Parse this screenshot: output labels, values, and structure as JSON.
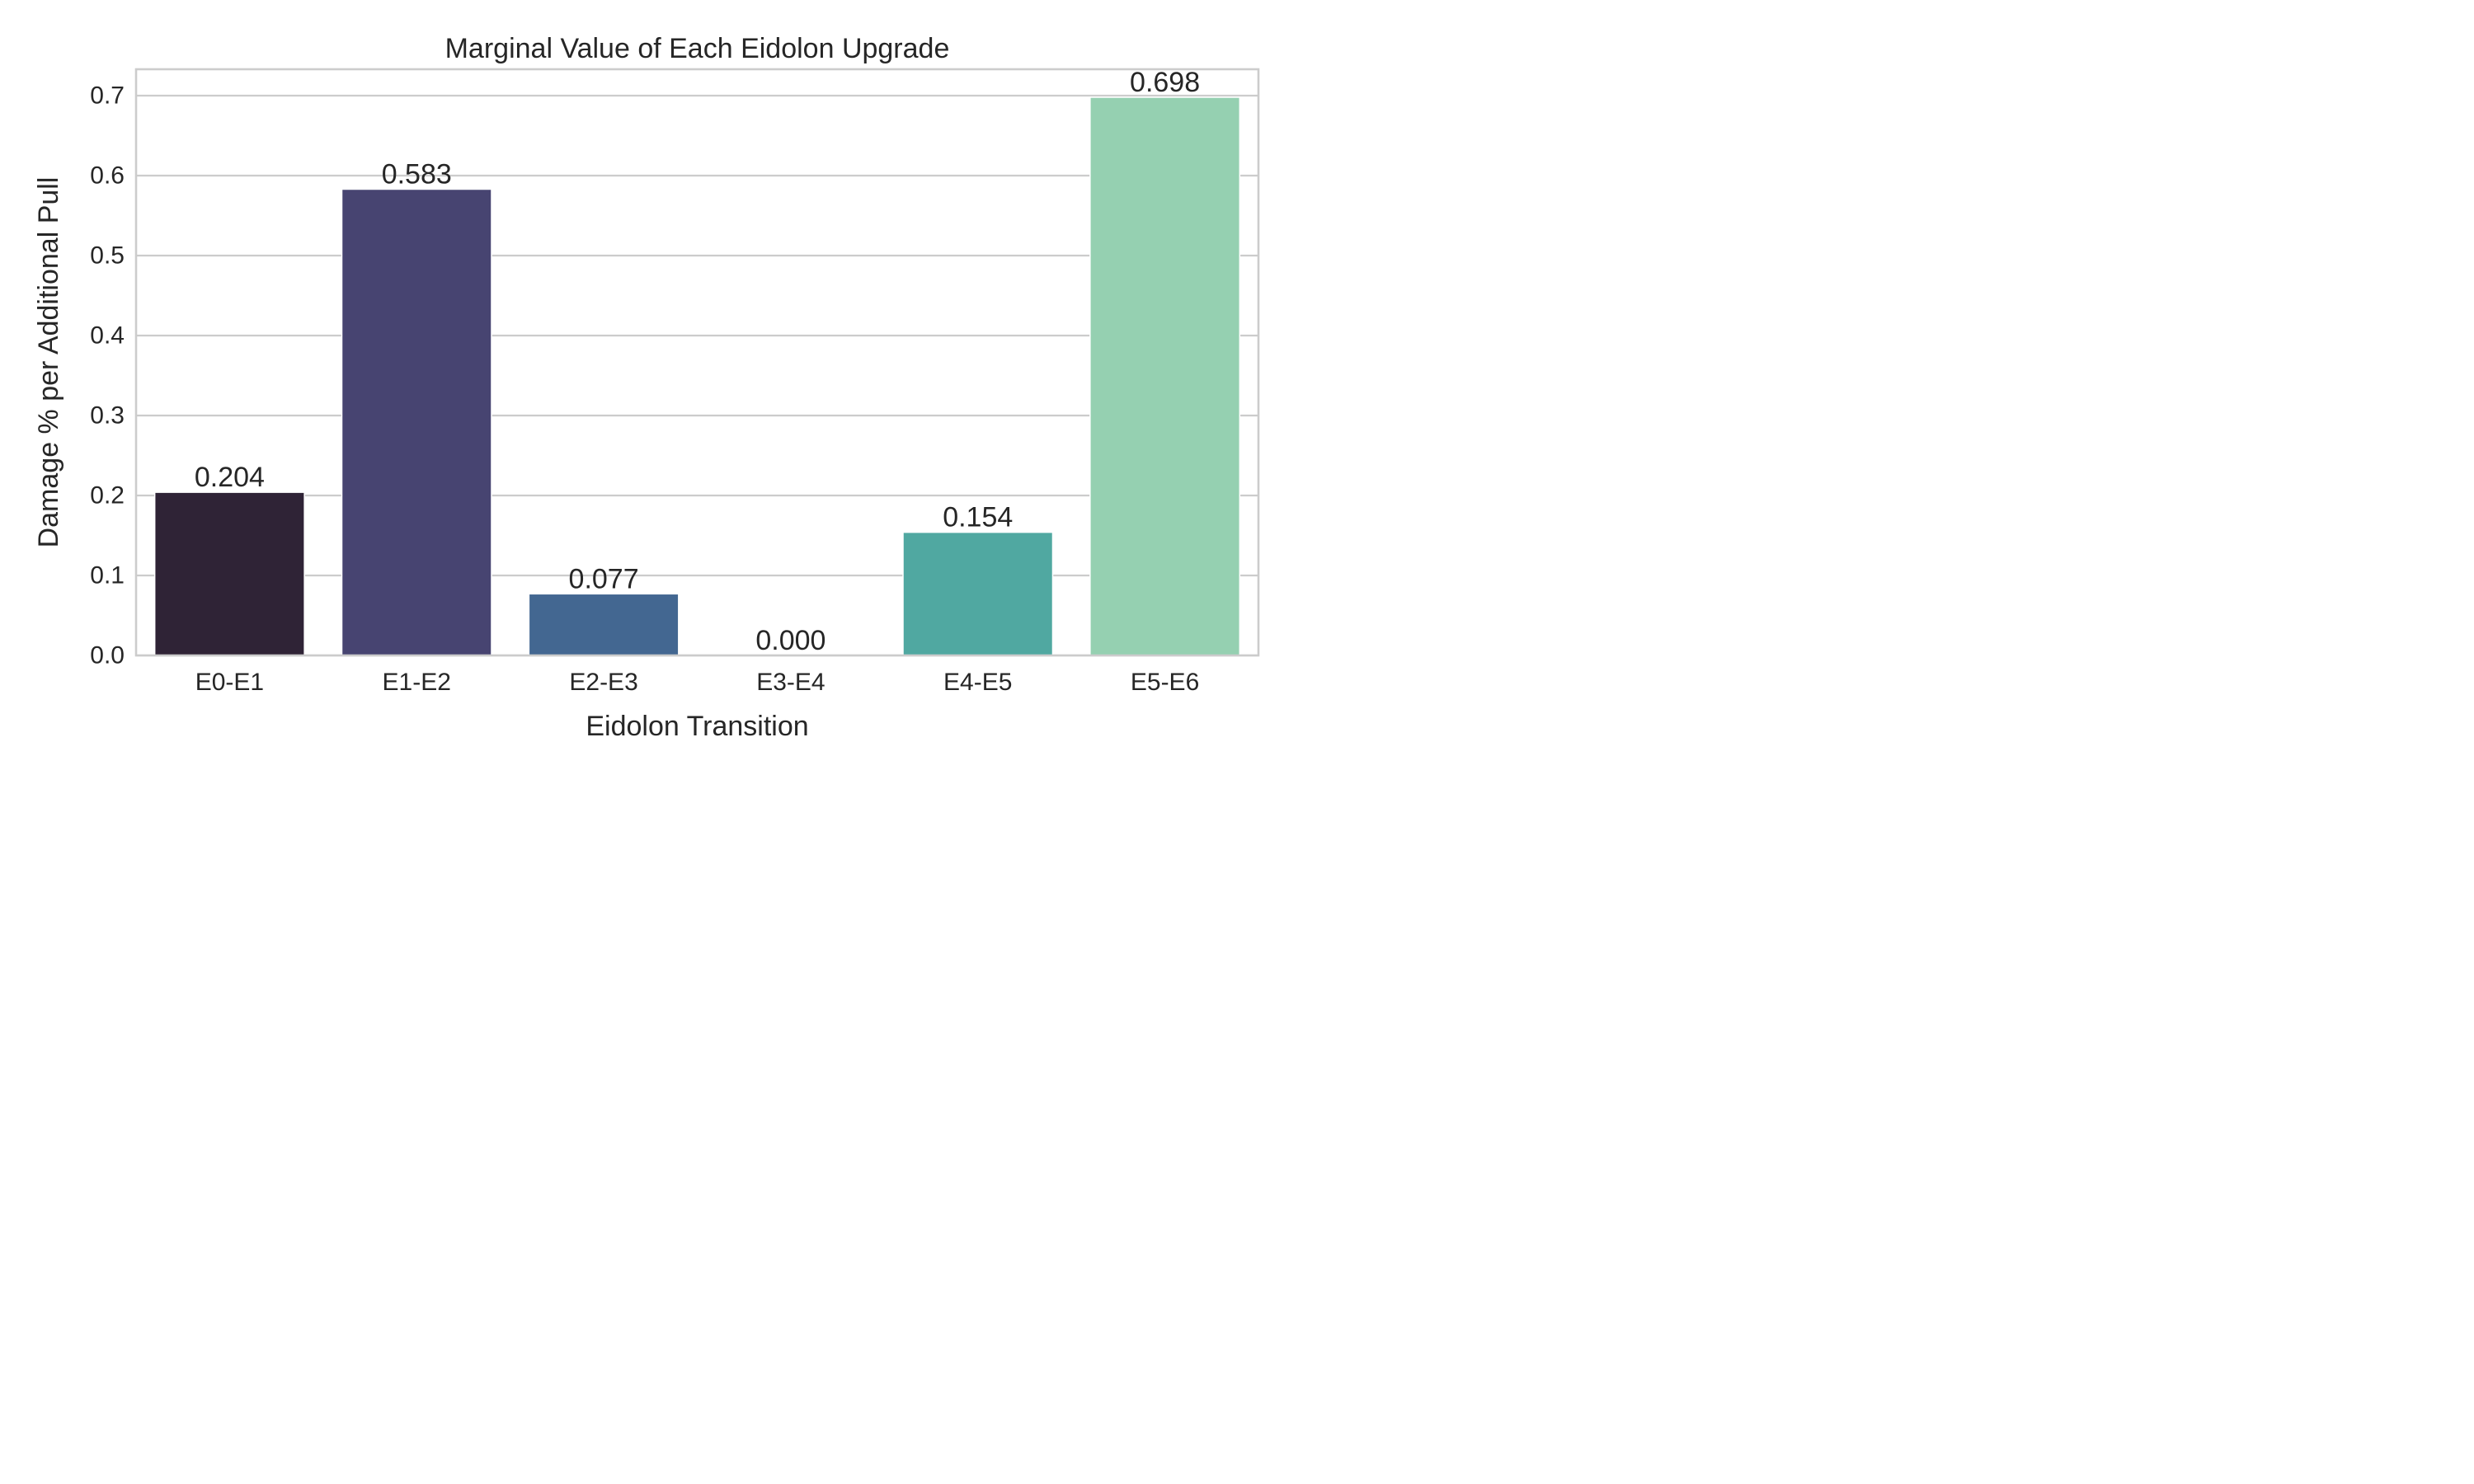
{
  "chart_data": {
    "type": "bar",
    "title": "Marginal Value of Each Eidolon Upgrade",
    "xlabel": "Eidolon Transition",
    "ylabel": "Damage % per Additional Pull",
    "categories": [
      "E0-E1",
      "E1-E2",
      "E2-E3",
      "E3-E4",
      "E4-E5",
      "E5-E6"
    ],
    "values": [
      0.204,
      0.583,
      0.077,
      0.0,
      0.154,
      0.698
    ],
    "value_labels": [
      "0.204",
      "0.583",
      "0.077",
      "0.000",
      "0.154",
      "0.698"
    ],
    "ylim": [
      0,
      0.733
    ],
    "yticks": [
      0.0,
      0.1,
      0.2,
      0.3,
      0.4,
      0.5,
      0.6,
      0.7
    ],
    "ytick_labels": [
      "0.0",
      "0.1",
      "0.2",
      "0.3",
      "0.4",
      "0.5",
      "0.6",
      "0.7"
    ],
    "bar_colors": [
      "#2f2336",
      "#474471",
      "#436791",
      "#3a8e9e",
      "#50a8a1",
      "#95d0b1"
    ],
    "grid": true,
    "grid_axis": "y"
  }
}
